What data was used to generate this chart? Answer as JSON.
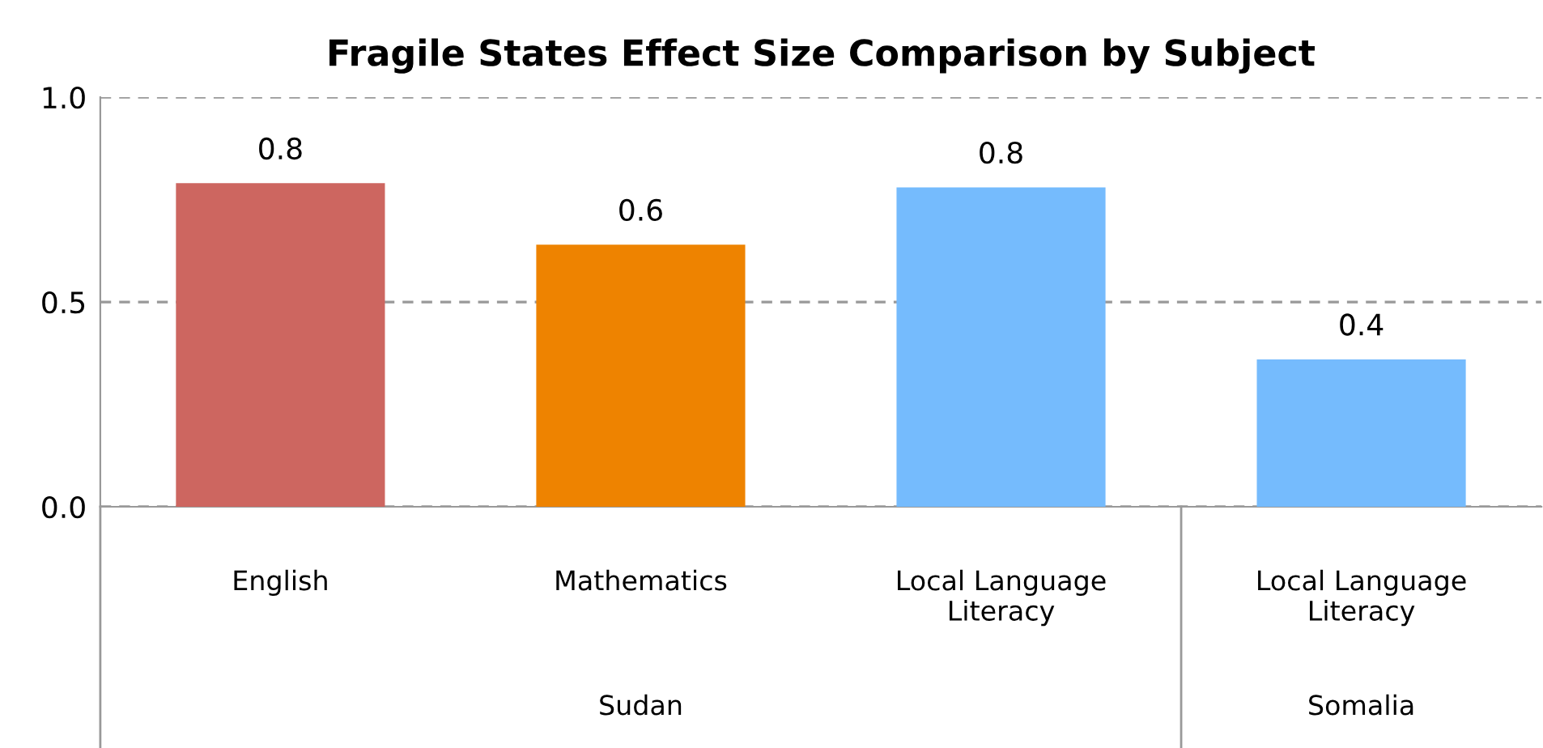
{
  "chart_data": {
    "type": "bar",
    "title": "Fragile States Effect Size Comparison by Subject",
    "categories": [
      "English",
      "Mathematics",
      "Local Language\nLiteracy",
      "Local Language\nLiteracy"
    ],
    "values": [
      0.79,
      0.64,
      0.78,
      0.36
    ],
    "value_labels": [
      "0.8",
      "0.6",
      "0.8",
      "0.4"
    ],
    "colors": [
      "#cd6660",
      "#ee8300",
      "#75bbfd",
      "#75bbfd"
    ],
    "ylim": [
      0,
      1
    ],
    "yticks": [
      {
        "value": 0,
        "label": "0.0"
      },
      {
        "value": 0.5,
        "label": "0.5"
      },
      {
        "value": 1,
        "label": "1.0"
      }
    ],
    "grid": "y",
    "legend": false,
    "annotations": [
      "Sudan",
      "Somalia"
    ]
  }
}
